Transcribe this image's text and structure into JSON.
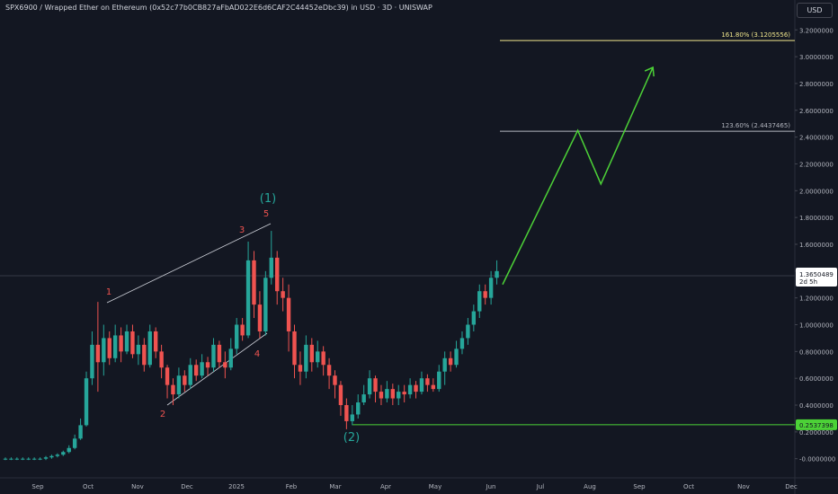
{
  "header": {
    "title": "SPX6900 / Wrapped Ether on Ethereum (0x52c77b0CB827aFbAD022E6d6CAF2C44452eDbc39) in USD · 3D · UNISWAP",
    "currency": "USD"
  },
  "colors": {
    "background": "#131722",
    "up": "#26a69a",
    "down": "#ef5350",
    "projection": "#4cd137",
    "fib_161": "#f0e68c",
    "fib_123": "#b2b5be",
    "support": "#4cd137",
    "wave_major": "#26a69a",
    "wave_minor": "#ef5350"
  },
  "chart_data": {
    "type": "candlestick",
    "ylim": [
      -0.1,
      3.3
    ],
    "y_ticks": [
      "3.2000000",
      "3.0000000",
      "2.8000000",
      "2.6000000",
      "2.4000000",
      "2.2000000",
      "2.0000000",
      "1.8000000",
      "1.6000000",
      "1.4000000",
      "1.2000000",
      "1.0000000",
      "0.8000000",
      "0.6000000",
      "0.4000000",
      "0.2000000",
      "-0.0000000"
    ],
    "y_tick_values": [
      3.2,
      3.0,
      2.8,
      2.6,
      2.4,
      2.2,
      2.0,
      1.8,
      1.6,
      1.4,
      1.2,
      1.0,
      0.8,
      0.6,
      0.4,
      0.2,
      0.0
    ],
    "x_ticks": [
      "Sep",
      "Oct",
      "Nov",
      "Dec",
      "2025",
      "Feb",
      "Mar",
      "Apr",
      "May",
      "Jun",
      "Jul",
      "Aug",
      "Sep",
      "Oct",
      "Nov",
      "Dec"
    ],
    "candles": [
      [
        0.0,
        0.0,
        0.01,
        -0.01
      ],
      [
        0.0,
        0.0,
        0.01,
        -0.01
      ],
      [
        0.0,
        0.0,
        0.01,
        -0.01
      ],
      [
        0.0,
        0.0,
        0.01,
        -0.01
      ],
      [
        0.0,
        0.0,
        0.01,
        -0.01
      ],
      [
        0.0,
        0.0,
        0.01,
        -0.01
      ],
      [
        0.0,
        0.0,
        0.01,
        -0.01
      ],
      [
        0.0,
        0.01,
        0.02,
        -0.01
      ],
      [
        0.01,
        0.02,
        0.03,
        0.0
      ],
      [
        0.02,
        0.03,
        0.04,
        0.01
      ],
      [
        0.03,
        0.05,
        0.06,
        0.02
      ],
      [
        0.05,
        0.08,
        0.1,
        0.04
      ],
      [
        0.08,
        0.15,
        0.18,
        0.07
      ],
      [
        0.15,
        0.25,
        0.3,
        0.14
      ],
      [
        0.25,
        0.6,
        0.65,
        0.24
      ],
      [
        0.6,
        0.85,
        0.95,
        0.55
      ],
      [
        0.85,
        0.72,
        1.17,
        0.5
      ],
      [
        0.72,
        0.9,
        1.0,
        0.62
      ],
      [
        0.9,
        0.75,
        0.95,
        0.7
      ],
      [
        0.75,
        0.92,
        1.0,
        0.72
      ],
      [
        0.92,
        0.8,
        0.98,
        0.72
      ],
      [
        0.8,
        0.95,
        1.0,
        0.78
      ],
      [
        0.95,
        0.78,
        1.0,
        0.75
      ],
      [
        0.78,
        0.85,
        0.92,
        0.7
      ],
      [
        0.85,
        0.7,
        0.9,
        0.65
      ],
      [
        0.7,
        0.95,
        1.0,
        0.68
      ],
      [
        0.95,
        0.8,
        0.98,
        0.75
      ],
      [
        0.8,
        0.68,
        0.85,
        0.6
      ],
      [
        0.68,
        0.55,
        0.7,
        0.45
      ],
      [
        0.55,
        0.48,
        0.6,
        0.4
      ],
      [
        0.48,
        0.62,
        0.68,
        0.45
      ],
      [
        0.62,
        0.55,
        0.66,
        0.5
      ],
      [
        0.55,
        0.7,
        0.75,
        0.52
      ],
      [
        0.7,
        0.62,
        0.74,
        0.58
      ],
      [
        0.62,
        0.72,
        0.78,
        0.6
      ],
      [
        0.72,
        0.68,
        0.76,
        0.62
      ],
      [
        0.68,
        0.85,
        0.9,
        0.65
      ],
      [
        0.85,
        0.72,
        0.88,
        0.68
      ],
      [
        0.72,
        0.68,
        0.8,
        0.6
      ],
      [
        0.68,
        0.82,
        0.9,
        0.66
      ],
      [
        0.82,
        1.0,
        1.05,
        0.78
      ],
      [
        1.0,
        0.92,
        1.05,
        0.88
      ],
      [
        0.92,
        1.48,
        1.62,
        0.9
      ],
      [
        1.48,
        1.15,
        1.55,
        1.05
      ],
      [
        1.15,
        0.95,
        1.25,
        0.9
      ],
      [
        0.95,
        1.35,
        1.4,
        0.92
      ],
      [
        1.35,
        1.5,
        1.7,
        1.3
      ],
      [
        1.5,
        1.25,
        1.55,
        1.15
      ],
      [
        1.25,
        1.2,
        1.35,
        1.1
      ],
      [
        1.2,
        0.95,
        1.3,
        0.8
      ],
      [
        0.95,
        0.7,
        1.0,
        0.6
      ],
      [
        0.7,
        0.65,
        0.8,
        0.55
      ],
      [
        0.65,
        0.85,
        0.92,
        0.6
      ],
      [
        0.85,
        0.72,
        0.9,
        0.65
      ],
      [
        0.72,
        0.8,
        0.88,
        0.68
      ],
      [
        0.8,
        0.7,
        0.84,
        0.62
      ],
      [
        0.7,
        0.62,
        0.75,
        0.52
      ],
      [
        0.62,
        0.55,
        0.66,
        0.45
      ],
      [
        0.55,
        0.4,
        0.58,
        0.32
      ],
      [
        0.4,
        0.28,
        0.45,
        0.22
      ],
      [
        0.28,
        0.33,
        0.4,
        0.25
      ],
      [
        0.33,
        0.42,
        0.48,
        0.3
      ],
      [
        0.42,
        0.48,
        0.55,
        0.4
      ],
      [
        0.48,
        0.6,
        0.66,
        0.45
      ],
      [
        0.6,
        0.5,
        0.62,
        0.42
      ],
      [
        0.5,
        0.45,
        0.55,
        0.4
      ],
      [
        0.45,
        0.52,
        0.58,
        0.42
      ],
      [
        0.52,
        0.45,
        0.56,
        0.4
      ],
      [
        0.45,
        0.5,
        0.55,
        0.4
      ],
      [
        0.5,
        0.48,
        0.55,
        0.42
      ],
      [
        0.48,
        0.55,
        0.6,
        0.45
      ],
      [
        0.55,
        0.5,
        0.58,
        0.45
      ],
      [
        0.5,
        0.6,
        0.65,
        0.48
      ],
      [
        0.6,
        0.55,
        0.63,
        0.5
      ],
      [
        0.55,
        0.52,
        0.6,
        0.5
      ],
      [
        0.52,
        0.65,
        0.7,
        0.5
      ],
      [
        0.65,
        0.75,
        0.8,
        0.55
      ],
      [
        0.75,
        0.7,
        0.8,
        0.65
      ],
      [
        0.7,
        0.82,
        0.88,
        0.68
      ],
      [
        0.82,
        0.9,
        0.95,
        0.78
      ],
      [
        0.9,
        1.0,
        1.05,
        0.85
      ],
      [
        1.0,
        1.1,
        1.15,
        0.95
      ],
      [
        1.1,
        1.25,
        1.3,
        1.05
      ],
      [
        1.25,
        1.2,
        1.3,
        1.15
      ],
      [
        1.2,
        1.35,
        1.4,
        1.15
      ],
      [
        1.35,
        1.4,
        1.48,
        1.3
      ]
    ],
    "current_price": "1.3650489",
    "countdown": "2d 5h",
    "support_level": "0.2537398",
    "fib_levels": [
      {
        "label": "161.80% (3.1205556)",
        "value": 3.1205556
      },
      {
        "label": "123.60% (2.4437465)",
        "value": 2.4437465
      }
    ],
    "projection_path": [
      {
        "i": 86,
        "y": 1.3
      },
      {
        "i": 99,
        "y": 2.45
      },
      {
        "i": 103,
        "y": 2.05
      },
      {
        "i": 112,
        "y": 2.92
      }
    ],
    "wave_labels": {
      "w1": "1",
      "w2": "2",
      "w3": "3",
      "w4": "4",
      "w5": "5",
      "major1": "(1)",
      "major2": "(2)"
    }
  }
}
